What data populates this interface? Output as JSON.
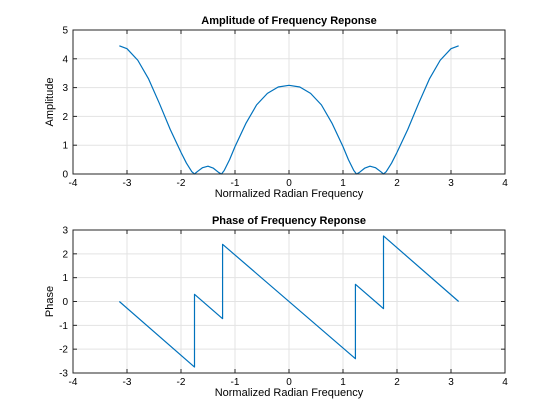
{
  "chart_data": [
    {
      "type": "line",
      "title": "Amplitude of Frequency Reponse",
      "xlabel": "Normalized Radian Frequency",
      "ylabel": "Amplitude",
      "xlim": [
        -4,
        4
      ],
      "ylim": [
        0,
        5
      ],
      "xticks": [
        -4,
        -3,
        -2,
        -1,
        0,
        1,
        2,
        3,
        4
      ],
      "yticks": [
        0,
        1,
        2,
        3,
        4,
        5
      ],
      "grid": true,
      "line_color": "#0072bd",
      "series": [
        {
          "x": [
            -3.1416,
            -3.0,
            -2.8,
            -2.6,
            -2.4,
            -2.2,
            -2.0,
            -1.9,
            -1.8,
            -1.75,
            -1.7,
            -1.6,
            -1.5,
            -1.4,
            -1.3,
            -1.25,
            -1.2,
            -1.1,
            -1.0,
            -0.8,
            -0.6,
            -0.4,
            -0.2,
            0.0,
            0.2,
            0.4,
            0.6,
            0.8,
            1.0,
            1.1,
            1.2,
            1.25,
            1.3,
            1.4,
            1.5,
            1.6,
            1.7,
            1.75,
            1.8,
            1.9,
            2.0,
            2.2,
            2.4,
            2.6,
            2.8,
            3.0,
            3.1416
          ],
          "y": [
            4.45,
            4.35,
            3.95,
            3.3,
            2.45,
            1.55,
            0.75,
            0.38,
            0.08,
            0.0,
            0.08,
            0.22,
            0.27,
            0.2,
            0.05,
            0.0,
            0.12,
            0.5,
            0.95,
            1.75,
            2.4,
            2.8,
            3.02,
            3.08,
            3.02,
            2.8,
            2.4,
            1.75,
            0.95,
            0.5,
            0.12,
            0.0,
            0.05,
            0.2,
            0.27,
            0.22,
            0.08,
            0.0,
            0.08,
            0.38,
            0.75,
            1.55,
            2.45,
            3.3,
            3.95,
            4.35,
            4.45
          ]
        }
      ]
    },
    {
      "type": "line",
      "title": "Phase of Frequency Reponse",
      "xlabel": "Normalized Radian Frequency",
      "ylabel": "Phase",
      "xlim": [
        -4,
        4
      ],
      "ylim": [
        -3,
        3
      ],
      "xticks": [
        -4,
        -3,
        -2,
        -1,
        0,
        1,
        2,
        3,
        4
      ],
      "yticks": [
        -3,
        -2,
        -1,
        0,
        1,
        2,
        3
      ],
      "grid": true,
      "line_color": "#0072bd",
      "series": [
        {
          "x": [
            -3.1416,
            -1.75,
            -1.75,
            -1.23,
            -1.23,
            1.23,
            1.23,
            1.75,
            1.75,
            3.1416
          ],
          "y": [
            0.0,
            -2.75,
            0.3,
            -0.72,
            2.4,
            -2.4,
            0.72,
            -0.3,
            2.75,
            0.0
          ]
        }
      ]
    }
  ]
}
